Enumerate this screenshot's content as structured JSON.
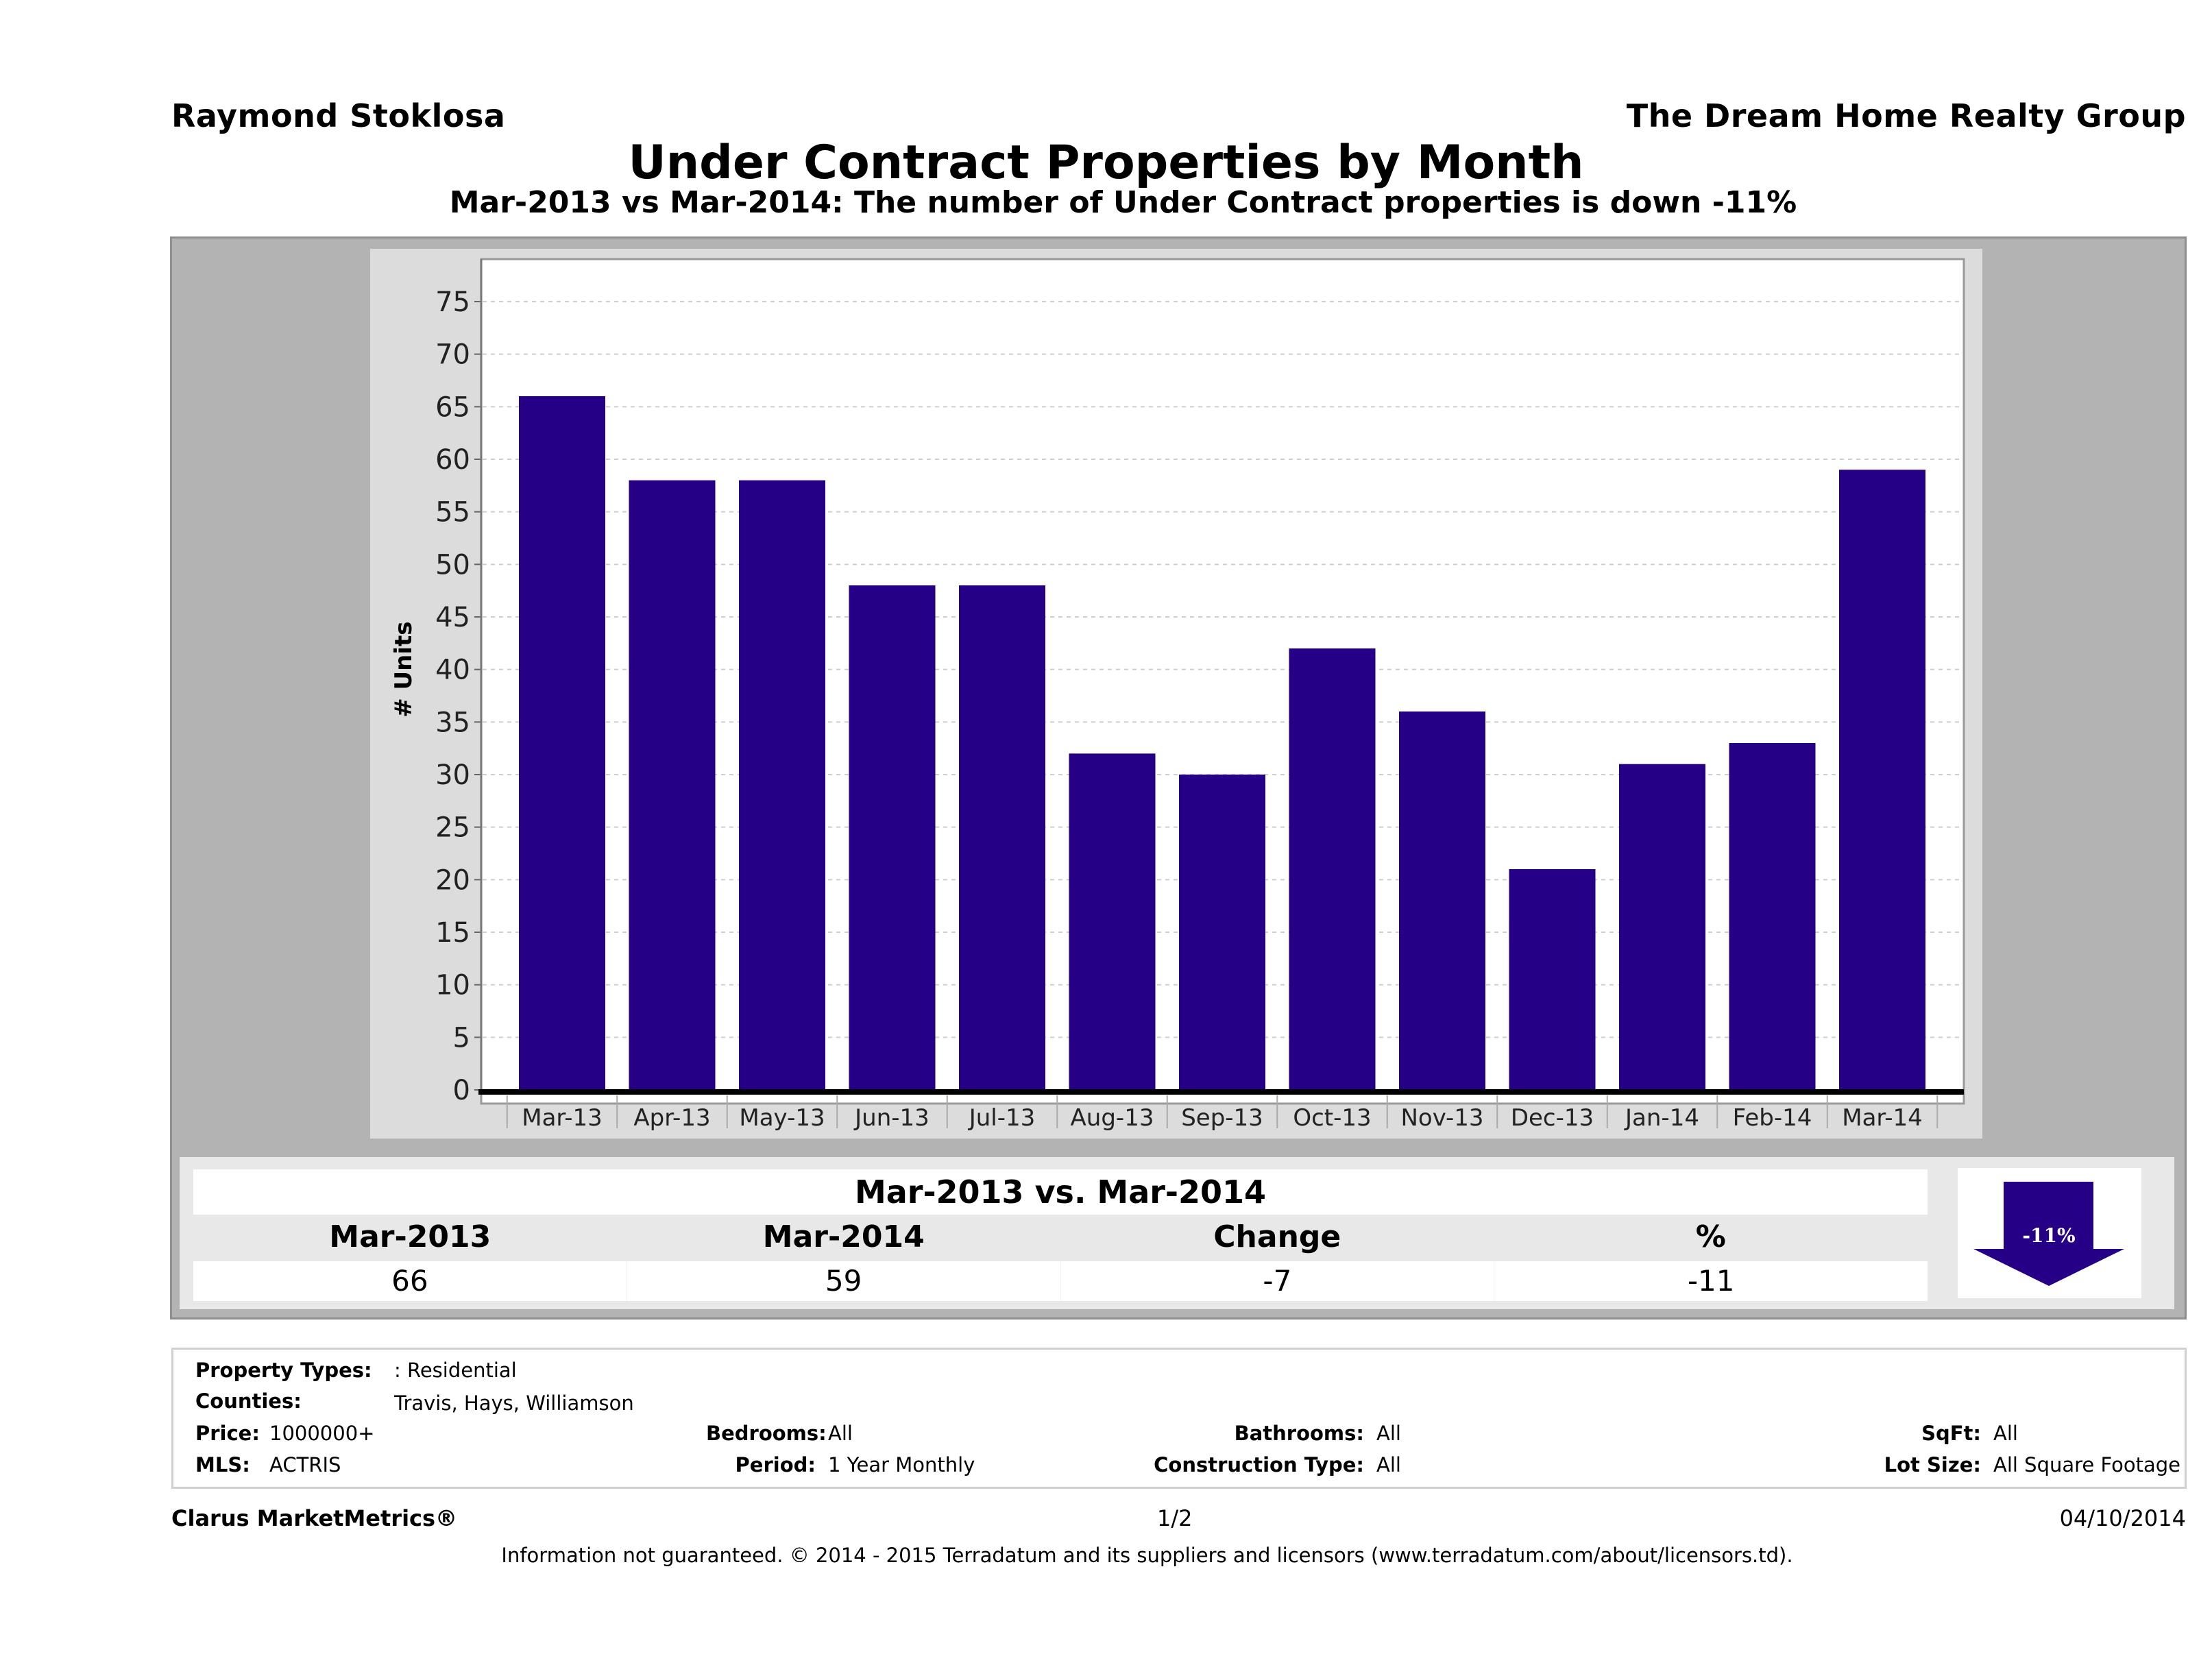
{
  "header": {
    "agent_name": "Raymond Stoklosa",
    "brokerage": "The Dream Home Realty Group",
    "title": "Under Contract Properties by Month",
    "subtitle": "Mar-2013 vs Mar-2014: The number of Under Contract  properties is down -11%"
  },
  "colors": {
    "bar": "#250087",
    "outer_panel": "#b3b3b3",
    "chart_panel": "#dcdcdc",
    "plot_bg": "#ffffff",
    "arrow": "#250087"
  },
  "chart_data": {
    "type": "bar",
    "title": "Under Contract Properties by Month",
    "xlabel": "",
    "ylabel": "# Units",
    "ylim": [
      0,
      78
    ],
    "yticks": [
      0,
      5,
      10,
      15,
      20,
      25,
      30,
      35,
      40,
      45,
      50,
      55,
      60,
      65,
      70,
      75
    ],
    "grid": true,
    "legend": "none",
    "categories": [
      "Mar-13",
      "Apr-13",
      "May-13",
      "Jun-13",
      "Jul-13",
      "Aug-13",
      "Sep-13",
      "Oct-13",
      "Nov-13",
      "Dec-13",
      "Jan-14",
      "Feb-14",
      "Mar-14"
    ],
    "values": [
      66,
      58,
      58,
      48,
      48,
      32,
      30,
      42,
      36,
      21,
      31,
      33,
      59
    ]
  },
  "summary": {
    "title": "Mar-2013 vs. Mar-2014",
    "headers": [
      "Mar-2013",
      "Mar-2014",
      "Change",
      "%"
    ],
    "values": [
      "66",
      "59",
      "-7",
      "-11"
    ],
    "badge": "-11%",
    "direction": "down-arrow-icon"
  },
  "details": {
    "property_types_label": "Property Types:",
    "property_types_value": ": Residential",
    "counties_label": "Counties:",
    "counties_value": "Travis, Hays, Williamson",
    "price_label": "Price:",
    "price_value": "1000000+",
    "mls_label": "MLS:",
    "mls_value": "ACTRIS",
    "bedrooms_label": "Bedrooms:",
    "bedrooms_value": "All",
    "period_label": "Period:",
    "period_value": "1 Year Monthly",
    "bathrooms_label": "Bathrooms:",
    "bathrooms_value": "All",
    "construction_label": "Construction Type:",
    "construction_value": "All",
    "sqft_label": "SqFt:",
    "sqft_value": "All",
    "lotsize_label": "Lot Size:",
    "lotsize_value": "All Square Footage"
  },
  "footer": {
    "product": "Clarus MarketMetrics®",
    "page": "1/2",
    "date": "04/10/2014",
    "disclaimer": "Information not guaranteed. © 2014 - 2015 Terradatum and its suppliers and licensors (www.terradatum.com/about/licensors.td)."
  }
}
